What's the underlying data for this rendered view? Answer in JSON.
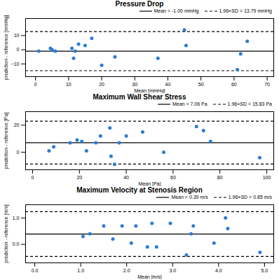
{
  "chart_data": [
    {
      "type": "scatter",
      "title": "Pressure Drop",
      "x_label": "Mean [mmHg]",
      "y_label": "prediction - reference [mmHg]",
      "x": [
        1,
        4.5,
        5,
        6,
        11,
        11.5,
        12,
        13,
        15,
        17,
        20,
        24,
        37,
        45,
        45.5,
        61,
        62,
        64
      ],
      "values": [
        -1,
        1,
        0,
        -1,
        1,
        -6,
        -1,
        4,
        3,
        8,
        -11,
        -5,
        -6,
        14,
        3,
        -14,
        -3,
        6
      ],
      "color": "#2b7bd6",
      "marker": "circle",
      "xlim": [
        -3,
        72
      ],
      "xticks": [
        0,
        10,
        20,
        30,
        40,
        50,
        60,
        70
      ],
      "ylim": [
        -19,
        22
      ],
      "yticks": [
        -10,
        0,
        10
      ],
      "reference_lines": [
        {
          "name": "Mean = -1.00 mmHg",
          "values": [
            -1.0
          ],
          "line_style": "solid"
        },
        {
          "name": "1.96×SD = 13.79 mmHg",
          "values": [
            12.79,
            -14.79
          ],
          "line_style": "dashed"
        }
      ],
      "legend": "upper right",
      "grid": false
    },
    {
      "type": "scatter",
      "title": "Maximum Wall Shear Stress",
      "x_label": "Mean [Pa]",
      "y_label": "prediction - reference [Pa]",
      "x": [
        7,
        9,
        16,
        19,
        21,
        23,
        27,
        29,
        33,
        33.5,
        35,
        37,
        40,
        47,
        56,
        70,
        73,
        76,
        97
      ],
      "values": [
        1,
        4,
        7,
        9,
        8,
        1,
        7,
        12,
        18,
        -3,
        -9,
        7,
        12,
        15,
        0,
        19,
        16,
        8,
        -4
      ],
      "color": "#2b7bd6",
      "marker": "circle",
      "xlim": [
        -3,
        103
      ],
      "xticks": [
        0,
        20,
        40,
        60,
        80,
        100
      ],
      "ylim": [
        -13,
        30
      ],
      "yticks": [
        0,
        20
      ],
      "reference_lines": [
        {
          "name": "Mean = 7.06 Pa",
          "values": [
            7.06
          ],
          "line_style": "solid"
        },
        {
          "name": "1.96×SD = 15.83 Pa",
          "values": [
            22.89,
            -8.77
          ],
          "line_style": "dashed"
        }
      ],
      "legend": "upper right",
      "grid": false
    },
    {
      "type": "scatter",
      "title": "Maximum Velocity at Stenosis Region",
      "x_label": "Mean [m/s]",
      "y_label": "prediction - reference [m/s]",
      "x": [
        1.05,
        1.2,
        1.5,
        1.7,
        1.9,
        2.1,
        2.2,
        2.45,
        2.55,
        2.65,
        2.95,
        3.3,
        3.4,
        3.45,
        3.9,
        4.15,
        4.2,
        4.9
      ],
      "values": [
        0.3,
        0.4,
        0.7,
        0.2,
        0.7,
        0.05,
        0.7,
        -0.1,
        0.8,
        -0.1,
        0.8,
        -0.4,
        0.4,
        0.7,
        0.05,
        1.0,
        0.6,
        -0.3
      ],
      "color": "#2b7bd6",
      "marker": "circle",
      "xlim": [
        -0.2,
        5.2
      ],
      "xticks": [
        0,
        1,
        2,
        3,
        4,
        5
      ],
      "ylim": [
        -0.7,
        1.5
      ],
      "yticks": [
        0,
        1
      ],
      "reference_lines": [
        {
          "name": "Mean = 0.39 m/s",
          "values": [
            0.39
          ],
          "line_style": "solid"
        },
        {
          "name": "1.96×SD = 0.85 m/s",
          "values": [
            1.24,
            -0.46
          ],
          "line_style": "dashed"
        }
      ],
      "legend": "upper right",
      "grid": false
    }
  ]
}
